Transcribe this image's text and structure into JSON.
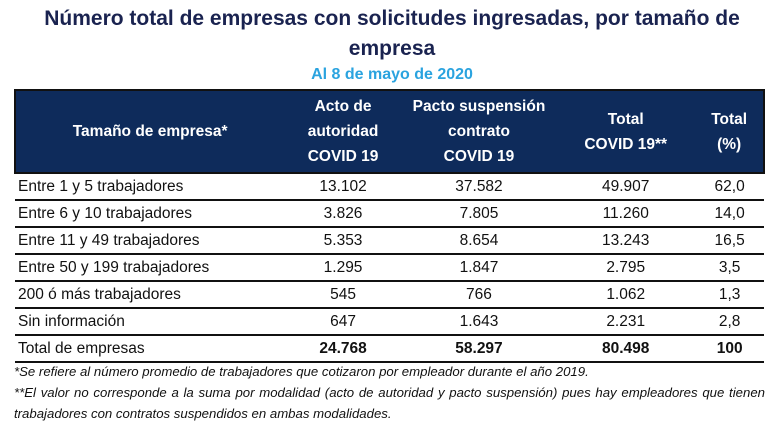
{
  "title": "Número total de empresas con solicitudes ingresadas, por tamaño de empresa",
  "subtitle": "Al 8 de mayo de 2020",
  "colors": {
    "header_bg": "#0e2b5b",
    "title": "#1a2350",
    "subtitle": "#2aa3df"
  },
  "table": {
    "headers": [
      [
        "Tamaño de empresa*"
      ],
      [
        "Acto de",
        "autoridad",
        "COVID 19"
      ],
      [
        "Pacto suspensión",
        "contrato",
        "COVID 19"
      ],
      [
        "Total",
        "COVID 19**"
      ],
      [
        "Total",
        "(%)"
      ]
    ],
    "rows": [
      [
        "Entre 1 y 5 trabajadores",
        "13.102",
        "37.582",
        "49.907",
        "62,0"
      ],
      [
        "Entre 6 y 10 trabajadores",
        "3.826",
        "7.805",
        "11.260",
        "14,0"
      ],
      [
        "Entre 11 y 49 trabajadores",
        "5.353",
        "8.654",
        "13.243",
        "16,5"
      ],
      [
        "Entre 50 y 199 trabajadores",
        "1.295",
        "1.847",
        "2.795",
        "3,5"
      ],
      [
        "200 ó más trabajadores",
        "545",
        "766",
        "1.062",
        "1,3"
      ],
      [
        "Sin información",
        "647",
        "1.643",
        "2.231",
        "2,8"
      ]
    ],
    "total": [
      "Total de empresas",
      "24.768",
      "58.297",
      "80.498",
      "100"
    ]
  },
  "notes": [
    "*Se refiere al número promedio de trabajadores que cotizaron por empleador durante el año 2019.",
    "**El valor no corresponde a la suma por modalidad (acto de autoridad y pacto suspensión) pues hay empleadores que tienen trabajadores con contratos suspendidos en ambas modalidades."
  ]
}
